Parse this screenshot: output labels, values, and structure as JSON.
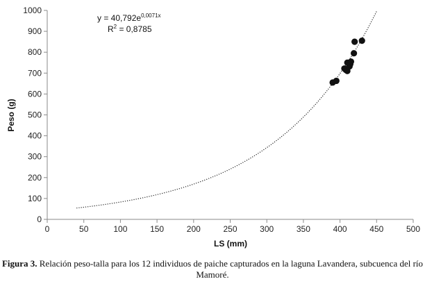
{
  "chart_data": {
    "type": "scatter",
    "xlabel": "LS (mm)",
    "ylabel": "Peso (g)",
    "xlim": [
      0,
      500
    ],
    "ylim": [
      0,
      1000
    ],
    "xticks": [
      0,
      50,
      100,
      150,
      200,
      250,
      300,
      350,
      400,
      450,
      500
    ],
    "yticks": [
      0,
      100,
      200,
      300,
      400,
      500,
      600,
      700,
      800,
      900,
      1000
    ],
    "grid": false,
    "points": [
      {
        "x": 390,
        "y": 655
      },
      {
        "x": 395,
        "y": 663
      },
      {
        "x": 406,
        "y": 722
      },
      {
        "x": 408,
        "y": 715
      },
      {
        "x": 410,
        "y": 710
      },
      {
        "x": 410,
        "y": 750
      },
      {
        "x": 413,
        "y": 732
      },
      {
        "x": 414,
        "y": 743
      },
      {
        "x": 415,
        "y": 755
      },
      {
        "x": 419,
        "y": 795
      },
      {
        "x": 420,
        "y": 850
      },
      {
        "x": 430,
        "y": 855
      }
    ],
    "trendline": {
      "type": "exponential",
      "a": 40.792,
      "b": 0.0071,
      "x_range": [
        40,
        450
      ],
      "style": "dotted"
    },
    "equation_text": "y = 40,792e",
    "equation_exponent": "0,0071x",
    "r2_prefix": "R",
    "r2_sup": "2",
    "r2_value": " = 0,8785"
  },
  "caption": {
    "label": "Figura 3.",
    "text": " Relación peso-talla para los 12 individuos de paiche capturados en la laguna Lavandera, subcuenca del río Mamoré."
  }
}
